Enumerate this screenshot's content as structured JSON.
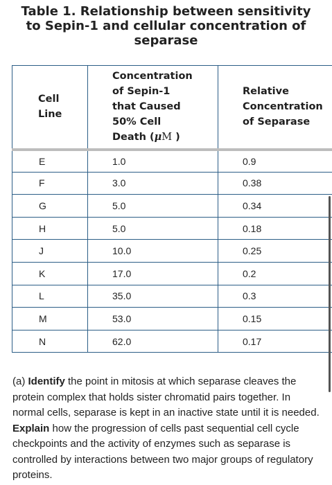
{
  "title": {
    "line1": "Table 1. Relationship between sensitivity",
    "line2": "to Sepin-1 and cellular concentration of",
    "line3": "separase"
  },
  "table": {
    "headers": {
      "col1_line1": "Cell",
      "col1_line2": "Line",
      "col2_line1": "Concentration",
      "col2_line2": "of Sepin-1",
      "col2_line3": "that Caused",
      "col2_line4": "50% Cell",
      "col2_line5_text": "Death (",
      "col2_mu": "μ",
      "col2_unit": "M",
      "col2_close": " )",
      "col3_line1": "Relative",
      "col3_line2": "Concentration",
      "col3_line3": "of Separase"
    },
    "rows": [
      {
        "cell_line": "E",
        "concentration": "1.0",
        "separase": "0.9"
      },
      {
        "cell_line": "F",
        "concentration": "3.0",
        "separase": "0.38"
      },
      {
        "cell_line": "G",
        "concentration": "5.0",
        "separase": "0.34"
      },
      {
        "cell_line": "H",
        "concentration": "5.0",
        "separase": "0.18"
      },
      {
        "cell_line": "J",
        "concentration": "10.0",
        "separase": "0.25"
      },
      {
        "cell_line": "K",
        "concentration": "17.0",
        "separase": "0.2"
      },
      {
        "cell_line": "L",
        "concentration": "35.0",
        "separase": "0.3"
      },
      {
        "cell_line": "M",
        "concentration": "53.0",
        "separase": "0.15"
      },
      {
        "cell_line": "N",
        "concentration": "62.0",
        "separase": "0.17"
      }
    ]
  },
  "question": {
    "prefix": "(a) ",
    "identify_label": "Identify",
    "identify_text": " the point in mitosis at which separase cleaves the protein complex that holds sister chromatid pairs together. In normal cells, separase is kept in an inactive state until it is needed. ",
    "explain_label": "Explain",
    "explain_text": " how the progression of cells past sequential cell cycle checkpoints and the activity of enzymes such as separase is controlled by interactions between two major groups of regulatory proteins."
  }
}
